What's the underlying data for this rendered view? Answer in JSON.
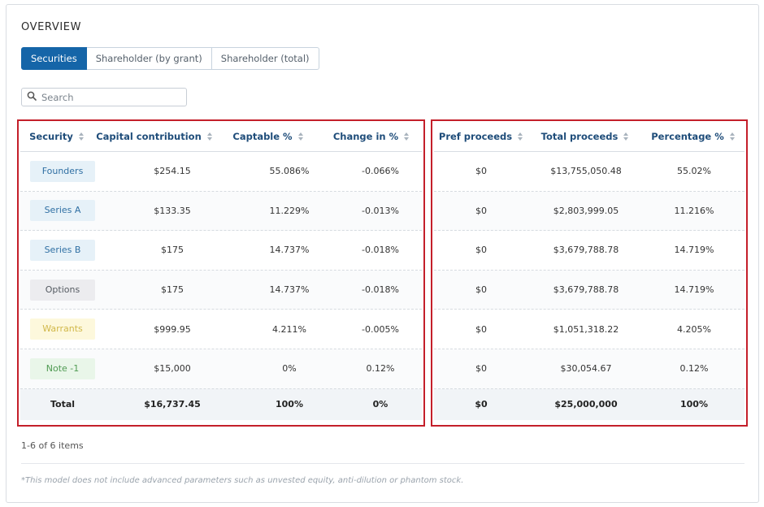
{
  "title": "OVERVIEW",
  "tabs": [
    {
      "label": "Securities",
      "active": true
    },
    {
      "label": "Shareholder (by grant)",
      "active": false
    },
    {
      "label": "Shareholder (total)",
      "active": false
    }
  ],
  "search": {
    "placeholder": "Search",
    "value": ""
  },
  "left_table": {
    "headers": [
      "Security",
      "Capital contribution",
      "Captable %",
      "Change in %"
    ],
    "rows": [
      {
        "security": "Founders",
        "badge_bg": "#e6f1f8",
        "badge_fg": "#2f6fa3",
        "capital": "$254.15",
        "captable": "55.086%",
        "change": "-0.066%"
      },
      {
        "security": "Series A",
        "badge_bg": "#e6f1f8",
        "badge_fg": "#2f6fa3",
        "capital": "$133.35",
        "captable": "11.229%",
        "change": "-0.013%"
      },
      {
        "security": "Series B",
        "badge_bg": "#e6f1f8",
        "badge_fg": "#2f6fa3",
        "capital": "$175",
        "captable": "14.737%",
        "change": "-0.018%"
      },
      {
        "security": "Options",
        "badge_bg": "#ececef",
        "badge_fg": "#555b62",
        "capital": "$175",
        "captable": "14.737%",
        "change": "-0.018%"
      },
      {
        "security": "Warrants",
        "badge_bg": "#fdf8dc",
        "badge_fg": "#d1b84a",
        "capital": "$999.95",
        "captable": "4.211%",
        "change": "-0.005%"
      },
      {
        "security": "Note -1",
        "badge_bg": "#e9f6e9",
        "badge_fg": "#4f9a52",
        "capital": "$15,000",
        "captable": "0%",
        "change": "0.12%"
      }
    ],
    "total": {
      "label": "Total",
      "capital": "$16,737.45",
      "captable": "100%",
      "change": "0%"
    }
  },
  "right_table": {
    "headers": [
      "Pref proceeds",
      "Total proceeds",
      "Percentage %"
    ],
    "rows": [
      {
        "pref": "$0",
        "total": "$13,755,050.48",
        "pct": "55.02%"
      },
      {
        "pref": "$0",
        "total": "$2,803,999.05",
        "pct": "11.216%"
      },
      {
        "pref": "$0",
        "total": "$3,679,788.78",
        "pct": "14.719%"
      },
      {
        "pref": "$0",
        "total": "$3,679,788.78",
        "pct": "14.719%"
      },
      {
        "pref": "$0",
        "total": "$1,051,318.22",
        "pct": "4.205%"
      },
      {
        "pref": "$0",
        "total": "$30,054.67",
        "pct": "0.12%"
      }
    ],
    "total": {
      "pref": "$0",
      "total": "$25,000,000",
      "pct": "100%"
    }
  },
  "pagination": {
    "text": "1-6 of 6 items"
  },
  "footnote": "*This model does not include advanced parameters such as unvested equity, anti-dilution or phantom stock.",
  "colors": {
    "accent": "#1565a8",
    "highlight": "#c41f2a"
  }
}
